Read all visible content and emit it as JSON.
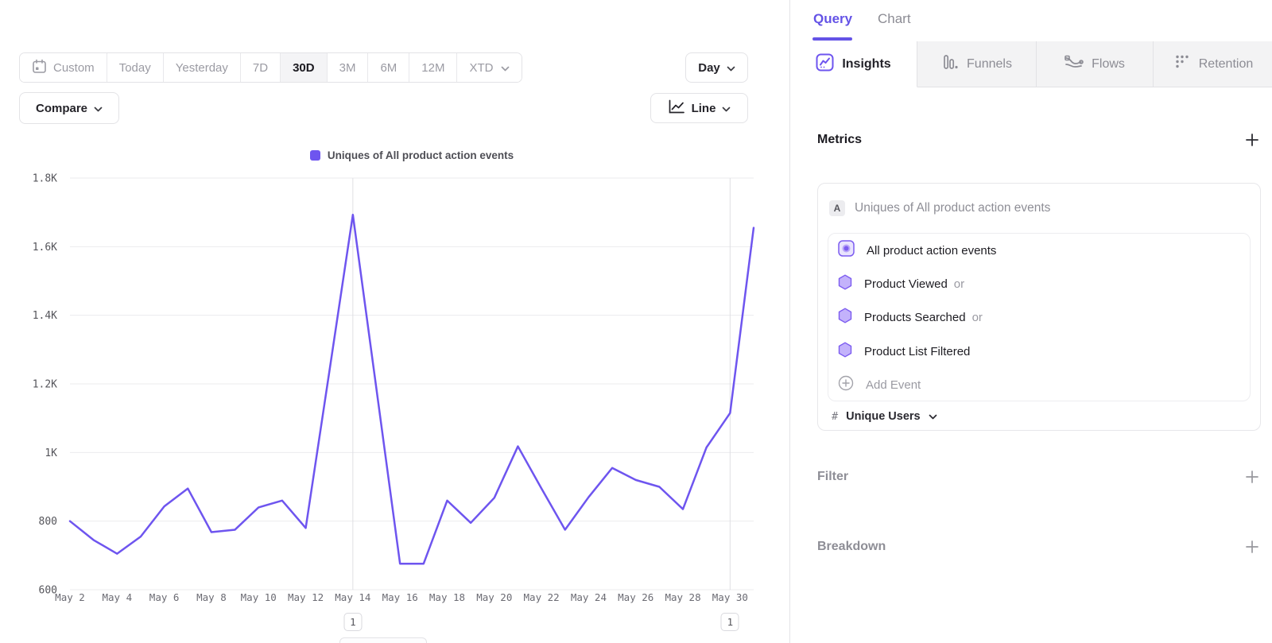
{
  "toolbar": {
    "date_ranges": [
      "Custom",
      "Today",
      "Yesterday",
      "7D",
      "30D",
      "3M",
      "6M",
      "12M",
      "XTD"
    ],
    "selected_range": "30D",
    "granularity": "Day",
    "compare_label": "Compare",
    "chart_type_label": "Line"
  },
  "chart_data": {
    "type": "line",
    "legend_label": "Uniques of All product action events",
    "x": [
      "May 2",
      "May 3",
      "May 4",
      "May 5",
      "May 6",
      "May 7",
      "May 8",
      "May 9",
      "May 10",
      "May 11",
      "May 12",
      "May 13",
      "May 14",
      "May 15",
      "May 16",
      "May 17",
      "May 18",
      "May 19",
      "May 20",
      "May 21",
      "May 22",
      "May 23",
      "May 24",
      "May 25",
      "May 26",
      "May 27",
      "May 28",
      "May 29",
      "May 30",
      "May 31"
    ],
    "values": [
      800,
      745,
      705,
      755,
      843,
      895,
      768,
      775,
      840,
      860,
      780,
      1235,
      1693,
      1185,
      676,
      676,
      860,
      795,
      868,
      1018,
      895,
      775,
      870,
      955,
      920,
      900,
      835,
      1015,
      1115,
      1655
    ],
    "ylim": [
      600,
      1800
    ],
    "y_ticks": [
      "600",
      "800",
      "1K",
      "1.2K",
      "1.4K",
      "1.6K",
      "1.8K"
    ],
    "x_tick_labels": [
      "May 2",
      "May 4",
      "May 6",
      "May 8",
      "May 10",
      "May 12",
      "May 14",
      "May 16",
      "May 18",
      "May 20",
      "May 22",
      "May 24",
      "May 26",
      "May 28",
      "May 30"
    ],
    "annotations": [
      {
        "x": "May 14",
        "label": "1"
      },
      {
        "x": "May 30",
        "label": "1"
      }
    ],
    "line_color": "#6e55ef",
    "grid_color": "#ebebee",
    "annotation_line_color": "#dfdfe3",
    "legend_position": "top-center",
    "grid": "horizontal"
  },
  "right_panel": {
    "top_tabs": {
      "query": "Query",
      "chart": "Chart"
    },
    "mode_tabs": [
      {
        "label": "Insights",
        "active": true
      },
      {
        "label": "Funnels",
        "active": false
      },
      {
        "label": "Flows",
        "active": false
      },
      {
        "label": "Retention",
        "active": false
      }
    ],
    "metrics": {
      "heading": "Metrics",
      "series_badge": "A",
      "series_label": "Uniques of All product action events",
      "events": [
        {
          "label": "All product action events",
          "suffix": ""
        },
        {
          "label": "Product Viewed",
          "suffix": "or"
        },
        {
          "label": "Products Searched",
          "suffix": "or"
        },
        {
          "label": "Product List Filtered",
          "suffix": ""
        }
      ],
      "add_event_label": "Add Event",
      "measurement": {
        "symbol": "#",
        "label": "Unique Users"
      }
    },
    "sections": [
      {
        "label": "Filter"
      },
      {
        "label": "Breakdown"
      }
    ]
  },
  "colors": {
    "accent": "#6e55ef",
    "hex_fill": "#c3b2fb",
    "hex_stroke": "#7c5cf0"
  }
}
